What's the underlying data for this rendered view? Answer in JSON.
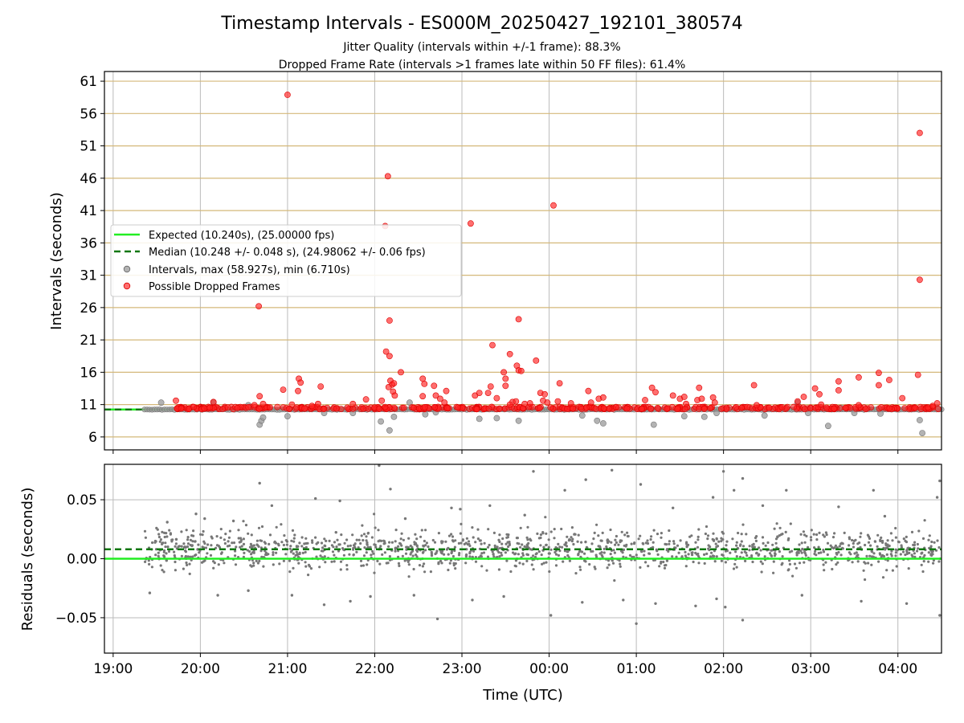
{
  "figure": {
    "title": "Timestamp Intervals - ES000M_20250427_192101_380574",
    "subtitle1": "Jitter Quality (intervals within +/-1 frame): 88.3%",
    "subtitle2": "Dropped Frame Rate (intervals >1 frames late within 50 FF files): 61.4%"
  },
  "colors": {
    "expected": "#22ee22",
    "median": "#117711",
    "interval": "#999999",
    "dropped": "#ff2222",
    "residual": "#777777",
    "hgrid_top": "#d4b87a",
    "grid": "#bbbbbb"
  },
  "chart_data": [
    {
      "type": "scatter",
      "ylabel": "Intervals (seconds)",
      "ylim": [
        4,
        62.5
      ],
      "yticks": [
        "6",
        "11",
        "16",
        "21",
        "26",
        "31",
        "36",
        "41",
        "46",
        "51",
        "56",
        "61"
      ],
      "grid": true,
      "legend": {
        "placement": "center-left",
        "entries": [
          "Expected (10.240s), (25.00000 fps)",
          "Median (10.248 +/- 0.048 s), (24.98062 +/- 0.06 fps)",
          "Intervals, max (58.927s), min (6.710s)",
          "Possible Dropped Frames"
        ]
      },
      "expected_y": 10.24,
      "median_y": 10.248,
      "time_range_hours": [
        19.36,
        28.5
      ],
      "series_intervals_gray": [
        [
          19.55,
          11.3
        ],
        [
          20.15,
          11.3
        ],
        [
          20.55,
          10.9
        ],
        [
          20.68,
          7.9
        ],
        [
          20.7,
          8.5
        ],
        [
          20.72,
          9.0
        ],
        [
          21.0,
          9.2
        ],
        [
          21.42,
          9.7
        ],
        [
          21.75,
          9.7
        ],
        [
          22.07,
          8.4
        ],
        [
          22.17,
          7.0
        ],
        [
          22.22,
          9.1
        ],
        [
          22.4,
          11.3
        ],
        [
          22.58,
          9.5
        ],
        [
          22.7,
          9.8
        ],
        [
          23.2,
          8.8
        ],
        [
          23.4,
          8.9
        ],
        [
          23.65,
          8.5
        ],
        [
          24.38,
          9.3
        ],
        [
          24.55,
          8.5
        ],
        [
          24.62,
          8.1
        ],
        [
          25.2,
          7.9
        ],
        [
          25.55,
          9.2
        ],
        [
          25.78,
          9.1
        ],
        [
          25.92,
          9.7
        ],
        [
          26.47,
          9.3
        ],
        [
          26.85,
          11.3
        ],
        [
          26.97,
          9.7
        ],
        [
          27.2,
          7.7
        ],
        [
          27.35,
          10.5
        ],
        [
          27.5,
          9.7
        ],
        [
          27.8,
          9.6
        ],
        [
          28.25,
          8.6
        ],
        [
          28.28,
          6.6
        ],
        [
          28.45,
          10.5
        ]
      ],
      "series_dropped": [
        [
          19.72,
          11.6
        ],
        [
          19.78,
          10.4
        ],
        [
          20.15,
          11.4
        ],
        [
          20.55,
          10.6
        ],
        [
          20.62,
          10.9
        ],
        [
          20.67,
          26.2
        ],
        [
          20.68,
          12.3
        ],
        [
          20.72,
          11.1
        ],
        [
          20.95,
          13.3
        ],
        [
          21.0,
          58.9
        ],
        [
          21.05,
          11.0
        ],
        [
          21.12,
          13.1
        ],
        [
          21.13,
          15.0
        ],
        [
          21.15,
          14.4
        ],
        [
          21.28,
          10.8
        ],
        [
          21.35,
          11.1
        ],
        [
          21.38,
          13.8
        ],
        [
          21.75,
          11.1
        ],
        [
          21.9,
          11.8
        ],
        [
          22.08,
          11.6
        ],
        [
          22.12,
          38.6
        ],
        [
          22.15,
          46.3
        ],
        [
          22.17,
          24.0
        ],
        [
          22.13,
          19.2
        ],
        [
          22.17,
          18.5
        ],
        [
          22.18,
          14.7
        ],
        [
          22.2,
          14.1
        ],
        [
          22.16,
          13.7
        ],
        [
          22.21,
          13.0
        ],
        [
          22.23,
          12.4
        ],
        [
          22.22,
          14.3
        ],
        [
          22.3,
          16.0
        ],
        [
          22.55,
          15.0
        ],
        [
          22.57,
          14.2
        ],
        [
          22.55,
          12.3
        ],
        [
          22.68,
          13.9
        ],
        [
          22.7,
          12.4
        ],
        [
          22.75,
          11.9
        ],
        [
          22.82,
          13.1
        ],
        [
          22.8,
          11.3
        ],
        [
          23.1,
          39.0
        ],
        [
          23.15,
          12.4
        ],
        [
          23.2,
          12.8
        ],
        [
          23.3,
          12.8
        ],
        [
          23.33,
          13.8
        ],
        [
          23.35,
          20.2
        ],
        [
          23.4,
          12.0
        ],
        [
          23.48,
          16.0
        ],
        [
          23.5,
          15.0
        ],
        [
          23.5,
          13.9
        ],
        [
          23.55,
          18.8
        ],
        [
          23.58,
          11.4
        ],
        [
          23.55,
          11.0
        ],
        [
          23.65,
          24.2
        ],
        [
          23.63,
          17.0
        ],
        [
          23.65,
          16.3
        ],
        [
          23.68,
          16.2
        ],
        [
          23.62,
          11.5
        ],
        [
          23.72,
          11.1
        ],
        [
          23.78,
          11.2
        ],
        [
          23.85,
          17.8
        ],
        [
          23.9,
          12.8
        ],
        [
          23.95,
          12.6
        ],
        [
          23.93,
          11.6
        ],
        [
          23.98,
          11.3
        ],
        [
          24.05,
          41.8
        ],
        [
          24.1,
          11.5
        ],
        [
          24.12,
          14.3
        ],
        [
          24.25,
          11.2
        ],
        [
          24.45,
          13.1
        ],
        [
          24.48,
          11.3
        ],
        [
          24.57,
          11.9
        ],
        [
          24.62,
          12.1
        ],
        [
          25.1,
          11.7
        ],
        [
          25.18,
          13.6
        ],
        [
          25.22,
          12.9
        ],
        [
          25.42,
          12.4
        ],
        [
          25.5,
          11.9
        ],
        [
          25.55,
          12.2
        ],
        [
          25.57,
          11.1
        ],
        [
          25.7,
          11.7
        ],
        [
          25.72,
          13.6
        ],
        [
          25.75,
          11.9
        ],
        [
          25.88,
          12.1
        ],
        [
          25.9,
          11.3
        ],
        [
          26.35,
          14.0
        ],
        [
          26.38,
          10.9
        ],
        [
          26.85,
          11.5
        ],
        [
          26.92,
          12.2
        ],
        [
          27.05,
          13.5
        ],
        [
          27.1,
          12.6
        ],
        [
          27.12,
          11.0
        ],
        [
          27.32,
          13.2
        ],
        [
          27.32,
          14.6
        ],
        [
          27.4,
          10.5
        ],
        [
          27.55,
          15.2
        ],
        [
          27.55,
          10.9
        ],
        [
          27.78,
          15.9
        ],
        [
          27.78,
          14.0
        ],
        [
          27.9,
          14.8
        ],
        [
          28.05,
          12.0
        ],
        [
          28.2,
          10.5
        ],
        [
          28.25,
          53.0
        ],
        [
          28.25,
          30.3
        ],
        [
          28.23,
          15.6
        ],
        [
          28.4,
          10.8
        ],
        [
          28.45,
          11.2
        ]
      ]
    },
    {
      "type": "scatter",
      "xlabel": "Time (UTC)",
      "ylabel": "Residuals (seconds)",
      "ylim": [
        -0.08,
        0.08
      ],
      "yticks": [
        "−0.05",
        "0.00",
        "0.05"
      ],
      "xticks": [
        "19:00",
        "20:00",
        "21:00",
        "22:00",
        "23:00",
        "00:00",
        "01:00",
        "02:00",
        "03:00",
        "04:00"
      ],
      "xlim_hours": [
        18.9,
        28.5
      ],
      "grid": true,
      "expected_y": 0.0,
      "median_y": 0.008,
      "residual_spread_sd": 0.012,
      "residual_outliers": [
        [
          19.42,
          -0.029
        ],
        [
          19.62,
          0.031
        ],
        [
          19.95,
          0.038
        ],
        [
          20.05,
          0.034
        ],
        [
          20.2,
          -0.031
        ],
        [
          20.38,
          0.032
        ],
        [
          20.55,
          -0.027
        ],
        [
          20.68,
          0.064
        ],
        [
          20.82,
          0.045
        ],
        [
          21.05,
          -0.031
        ],
        [
          21.32,
          0.051
        ],
        [
          21.42,
          -0.039
        ],
        [
          21.6,
          0.049
        ],
        [
          21.72,
          -0.036
        ],
        [
          21.95,
          -0.032
        ],
        [
          22.05,
          0.079
        ],
        [
          22.18,
          0.059
        ],
        [
          22.35,
          0.034
        ],
        [
          22.45,
          -0.031
        ],
        [
          22.72,
          -0.051
        ],
        [
          22.88,
          0.043
        ],
        [
          22.98,
          0.042
        ],
        [
          23.12,
          -0.035
        ],
        [
          23.32,
          0.045
        ],
        [
          23.48,
          -0.032
        ],
        [
          23.72,
          0.037
        ],
        [
          23.82,
          0.074
        ],
        [
          24.02,
          -0.048
        ],
        [
          24.18,
          0.058
        ],
        [
          24.38,
          -0.037
        ],
        [
          24.42,
          0.067
        ],
        [
          24.72,
          0.075
        ],
        [
          24.85,
          -0.035
        ],
        [
          25.0,
          -0.055
        ],
        [
          25.05,
          0.063
        ],
        [
          25.22,
          -0.038
        ],
        [
          25.42,
          0.043
        ],
        [
          25.68,
          -0.04
        ],
        [
          25.88,
          0.052
        ],
        [
          25.92,
          -0.034
        ],
        [
          26.0,
          0.074
        ],
        [
          26.02,
          -0.041
        ],
        [
          26.12,
          0.058
        ],
        [
          26.22,
          0.068
        ],
        [
          26.22,
          -0.052
        ],
        [
          26.45,
          0.045
        ],
        [
          26.72,
          0.058
        ],
        [
          26.9,
          -0.031
        ],
        [
          27.32,
          0.044
        ],
        [
          27.58,
          -0.036
        ],
        [
          27.72,
          0.058
        ],
        [
          27.85,
          0.036
        ],
        [
          28.1,
          -0.038
        ],
        [
          28.45,
          0.052
        ],
        [
          28.48,
          0.066
        ],
        [
          28.48,
          -0.048
        ]
      ]
    }
  ]
}
